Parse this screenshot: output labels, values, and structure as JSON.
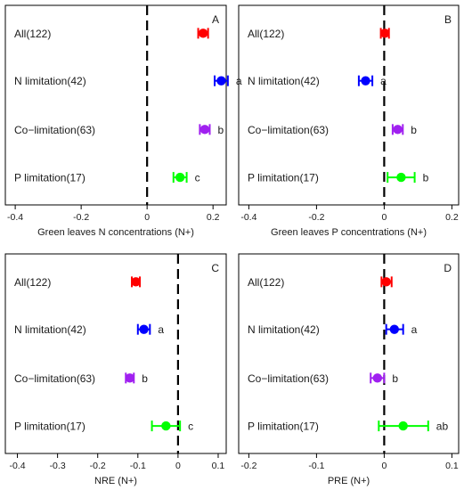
{
  "chart_data": [
    {
      "panel": "A",
      "type": "forest",
      "xlabel": "Green leaves N concentrations (N+)",
      "xticks": [
        -0.4,
        -0.2,
        0,
        0.2
      ],
      "tick_labels": [
        "-0.4",
        "-0.2",
        "0",
        "0.2"
      ],
      "xlim": [
        -0.43,
        0.24
      ],
      "reference_line": 0,
      "groups": [
        {
          "label": "All(122)",
          "mean": 0.17,
          "ci": [
            0.155,
            0.185
          ],
          "color": "#ff0000",
          "letter": ""
        },
        {
          "label": "N limitation(42)",
          "mean": 0.225,
          "ci": [
            0.205,
            0.245
          ],
          "color": "#0000ff",
          "letter": "a"
        },
        {
          "label": "Co−limitation(63)",
          "mean": 0.175,
          "ci": [
            0.16,
            0.19
          ],
          "color": "#a020f0",
          "letter": "b"
        },
        {
          "label": "P limitation(17)",
          "mean": 0.1,
          "ci": [
            0.08,
            0.12
          ],
          "color": "#00ff00",
          "letter": "c"
        }
      ]
    },
    {
      "panel": "B",
      "type": "forest",
      "xlabel": "Green leaves P concentrations (N+)",
      "xticks": [
        -0.4,
        -0.2,
        0,
        0.2
      ],
      "tick_labels": [
        "-0.4",
        "-0.2",
        "0",
        "0.2"
      ],
      "xlim": [
        -0.43,
        0.22
      ],
      "reference_line": 0,
      "groups": [
        {
          "label": "All(122)",
          "mean": 0.002,
          "ci": [
            -0.01,
            0.014
          ],
          "color": "#ff0000",
          "letter": ""
        },
        {
          "label": "N limitation(42)",
          "mean": -0.055,
          "ci": [
            -0.075,
            -0.035
          ],
          "color": "#0000ff",
          "letter": "a"
        },
        {
          "label": "Co−limitation(63)",
          "mean": 0.04,
          "ci": [
            0.025,
            0.055
          ],
          "color": "#a020f0",
          "letter": "b"
        },
        {
          "label": "P limitation(17)",
          "mean": 0.05,
          "ci": [
            0.01,
            0.09
          ],
          "color": "#00ff00",
          "letter": "b"
        }
      ]
    },
    {
      "panel": "C",
      "type": "forest",
      "xlabel": "NRE (N+)",
      "xticks": [
        -0.4,
        -0.3,
        -0.2,
        -0.1,
        0,
        0.1
      ],
      "tick_labels": [
        "-0.4",
        "-0.3",
        "-0.2",
        "-0.1",
        "0",
        "0.1"
      ],
      "xlim": [
        -0.43,
        0.12
      ],
      "reference_line": 0,
      "groups": [
        {
          "label": "All(122)",
          "mean": -0.105,
          "ci": [
            -0.115,
            -0.095
          ],
          "color": "#ff0000",
          "letter": ""
        },
        {
          "label": "N limitation(42)",
          "mean": -0.085,
          "ci": [
            -0.1,
            -0.07
          ],
          "color": "#0000ff",
          "letter": "a"
        },
        {
          "label": "Co−limitation(63)",
          "mean": -0.12,
          "ci": [
            -0.13,
            -0.11
          ],
          "color": "#a020f0",
          "letter": "b"
        },
        {
          "label": "P limitation(17)",
          "mean": -0.03,
          "ci": [
            -0.065,
            0.005
          ],
          "color": "#00ff00",
          "letter": "c"
        }
      ]
    },
    {
      "panel": "D",
      "type": "forest",
      "xlabel": "PRE (N+)",
      "xticks": [
        -0.2,
        -0.1,
        0,
        0.1
      ],
      "tick_labels": [
        "-0.2",
        "-0.1",
        "0",
        "0.1"
      ],
      "xlim": [
        -0.215,
        0.11
      ],
      "reference_line": 0,
      "groups": [
        {
          "label": "All(122)",
          "mean": 0.003,
          "ci": [
            -0.004,
            0.011
          ],
          "color": "#ff0000",
          "letter": ""
        },
        {
          "label": "N limitation(42)",
          "mean": 0.015,
          "ci": [
            0.003,
            0.028
          ],
          "color": "#0000ff",
          "letter": "a"
        },
        {
          "label": "Co−limitation(63)",
          "mean": -0.01,
          "ci": [
            -0.02,
            0.0
          ],
          "color": "#a020f0",
          "letter": "b"
        },
        {
          "label": "P limitation(17)",
          "mean": 0.028,
          "ci": [
            -0.008,
            0.065
          ],
          "color": "#00ff00",
          "letter": "ab"
        }
      ]
    }
  ]
}
